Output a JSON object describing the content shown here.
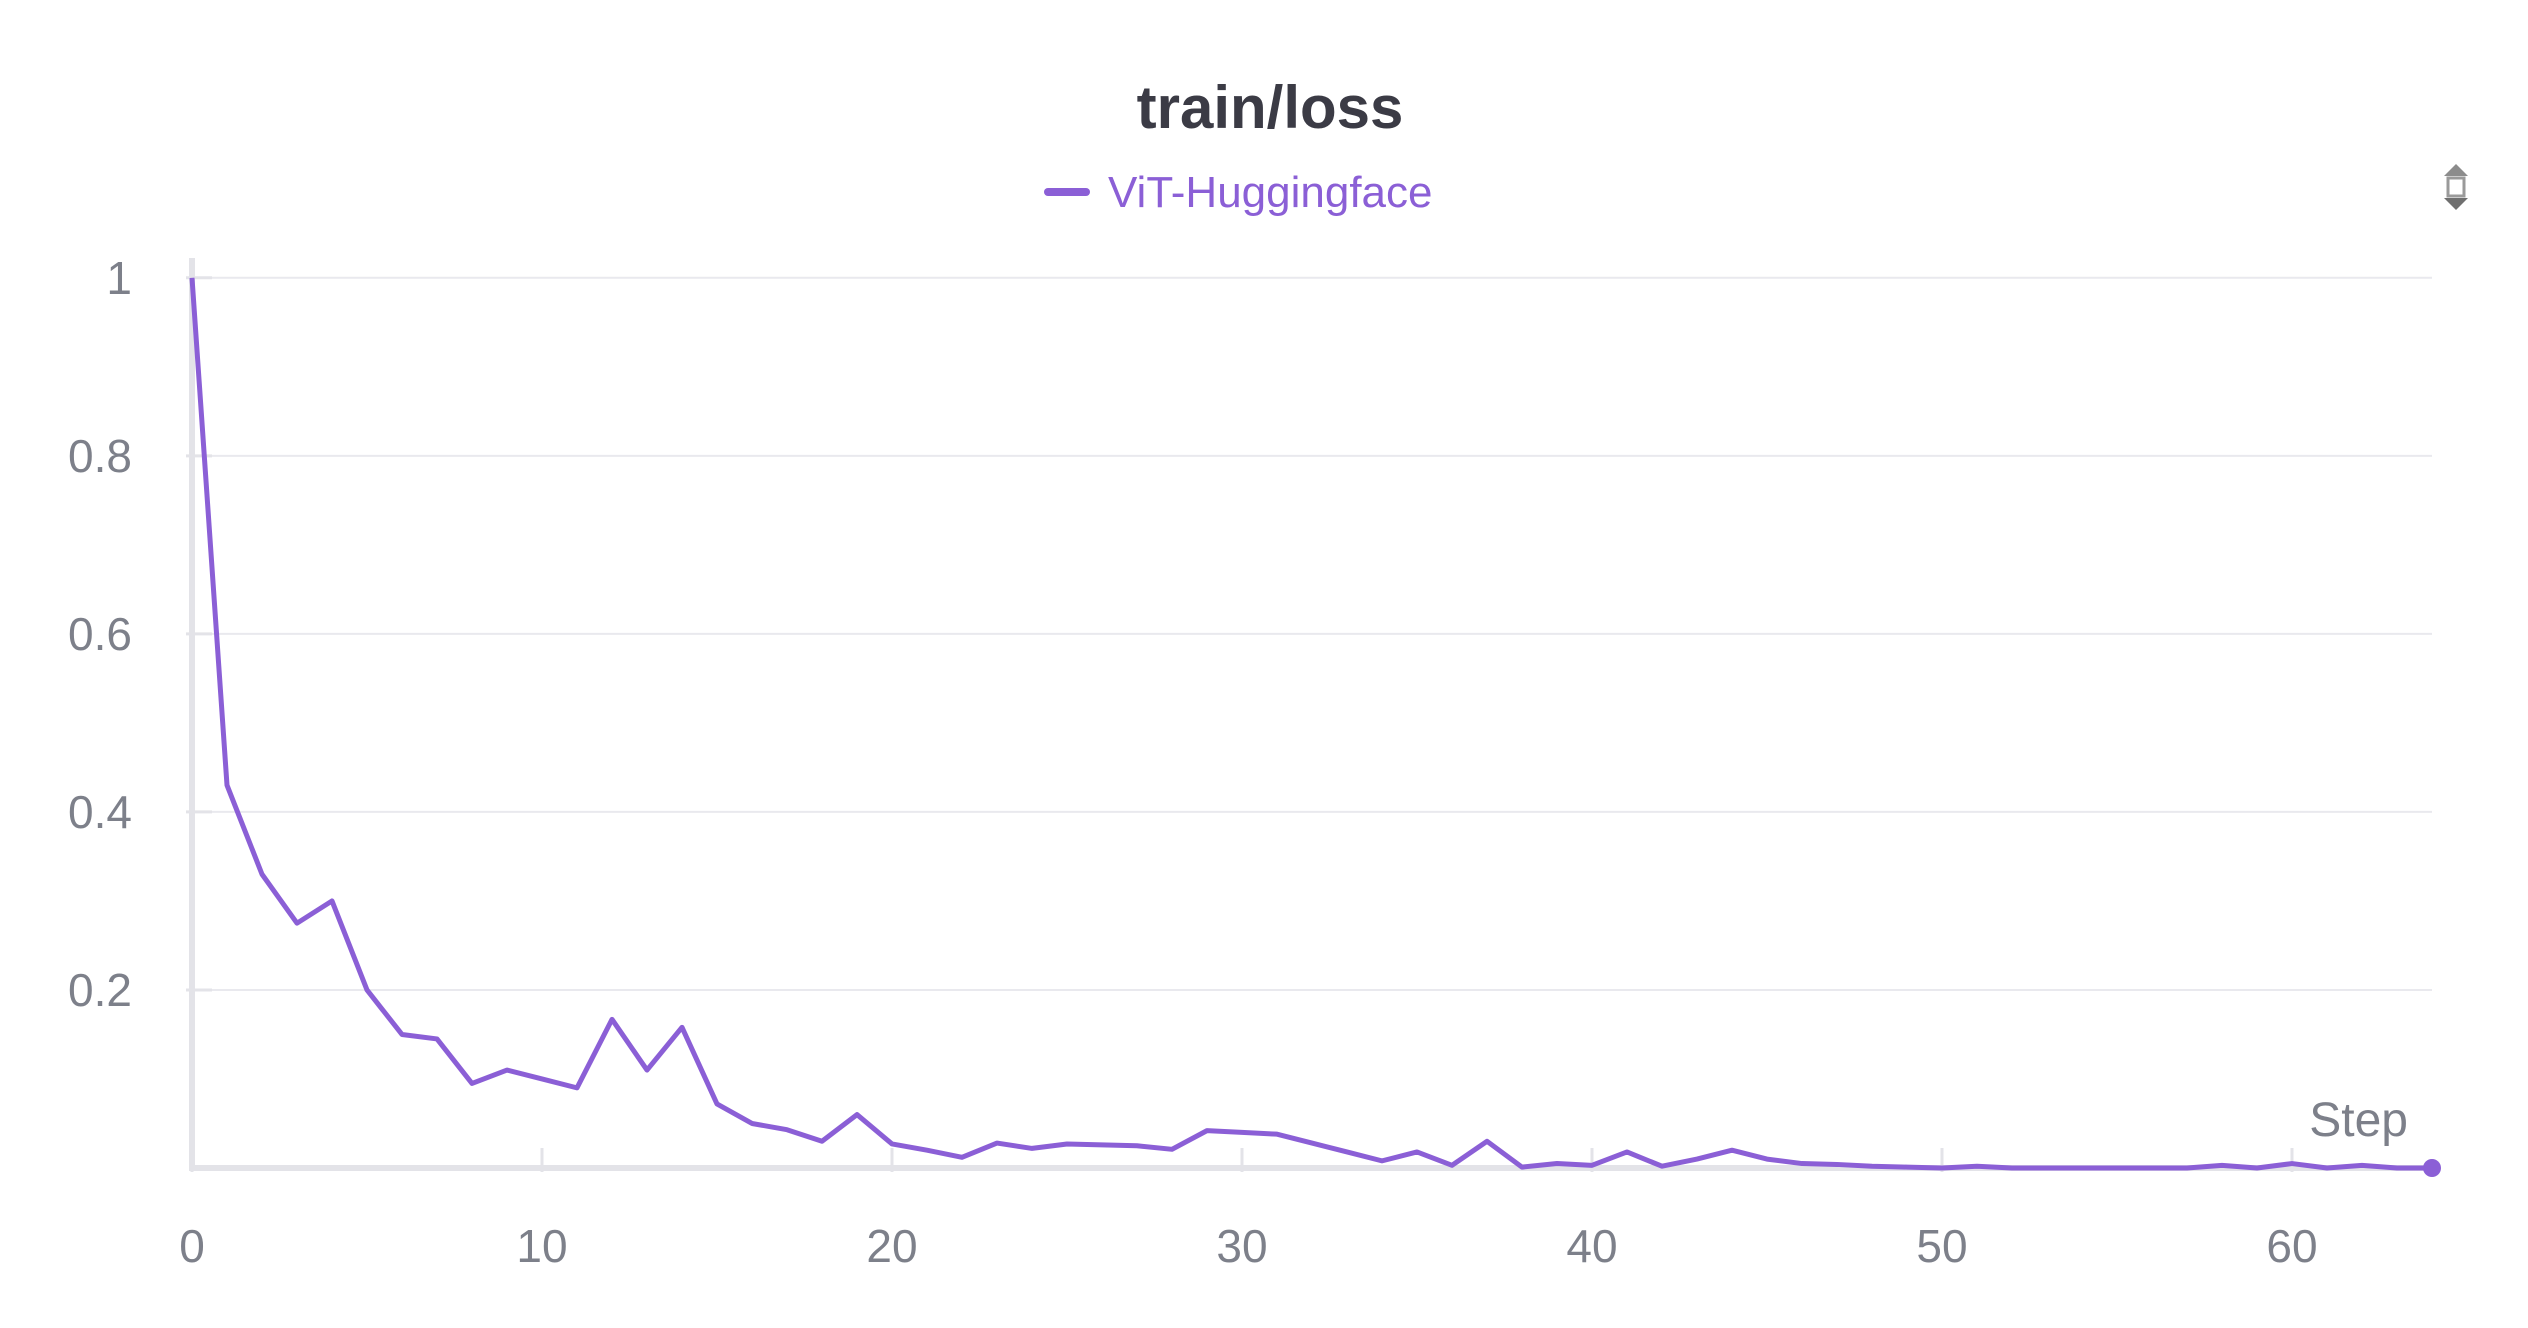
{
  "chart_data": {
    "type": "line",
    "title": "train/loss",
    "xlabel": "Step",
    "ylabel": "",
    "xlim": [
      0,
      64
    ],
    "ylim": [
      0,
      1.02
    ],
    "xticks": [
      0,
      10,
      20,
      30,
      40,
      50,
      60
    ],
    "yticks": [
      0.2,
      0.4,
      0.6,
      0.8,
      1
    ],
    "ytick_labels": [
      "0.2",
      "0.4",
      "0.6",
      "0.8",
      "1"
    ],
    "xtick_labels": [
      "0",
      "10",
      "20",
      "30",
      "40",
      "50",
      "60"
    ],
    "grid": true,
    "legend_position": "top-center",
    "series": [
      {
        "name": "ViT-Huggingface",
        "color": "#8b5fd6",
        "x": [
          0,
          1,
          2,
          3,
          4,
          5,
          6,
          7,
          8,
          9,
          10,
          11,
          12,
          13,
          14,
          15,
          16,
          17,
          18,
          19,
          20,
          21,
          22,
          23,
          24,
          25,
          26,
          27,
          28,
          29,
          30,
          31,
          32,
          33,
          34,
          35,
          36,
          37,
          38,
          39,
          40,
          41,
          42,
          43,
          44,
          45,
          46,
          47,
          48,
          49,
          50,
          51,
          52,
          53,
          54,
          55,
          56,
          57,
          58,
          59,
          60,
          61,
          62,
          63,
          64
        ],
        "y": [
          1.0,
          0.43,
          0.33,
          0.275,
          0.3,
          0.2,
          0.15,
          0.145,
          0.095,
          0.11,
          0.1,
          0.09,
          0.167,
          0.11,
          0.158,
          0.072,
          0.05,
          0.043,
          0.03,
          0.06,
          0.027,
          0.02,
          0.012,
          0.028,
          0.022,
          0.027,
          0.026,
          0.025,
          0.021,
          0.042,
          0.04,
          0.038,
          0.028,
          0.018,
          0.008,
          0.018,
          0.003,
          0.03,
          0.001,
          0.005,
          0.003,
          0.018,
          0.002,
          0.01,
          0.02,
          0.01,
          0.005,
          0.004,
          0.002,
          0.001,
          0.0,
          0.002,
          0.0,
          0.0,
          0.0,
          0.0,
          0.0,
          0.0,
          0.003,
          0.0,
          0.005,
          0.0,
          0.003,
          0.0,
          0.0
        ]
      }
    ]
  },
  "ui": {
    "scale_icon": "scale-toggle-icon"
  }
}
